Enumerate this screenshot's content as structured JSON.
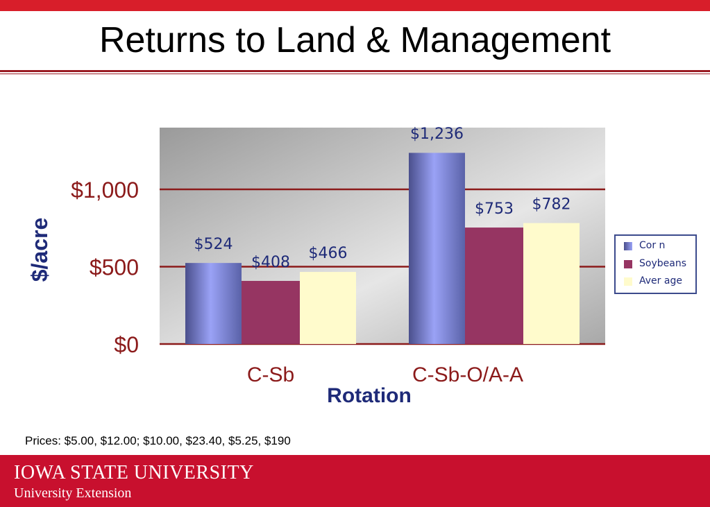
{
  "slide": {
    "title": "Returns to Land & Management",
    "footnote": "Prices: $5.00, $12.00; $10.00, $23.40, $5.25, $190",
    "footer": {
      "institution": "IOWA STATE UNIVERSITY",
      "unit": "University Extension"
    }
  },
  "colors": {
    "accent_red": "#d81e2a",
    "footer_red": "#c8102e",
    "corn": "#8f98ee",
    "soybeans": "#963562",
    "average": "#fffbcc",
    "axis_text": "#8b1a1a",
    "label_text": "#1e2a78"
  },
  "chart_data": {
    "type": "bar",
    "title": "",
    "xlabel": "Rotation",
    "ylabel": "$/acre",
    "categories": [
      "C-Sb",
      "C-Sb-O/A-A"
    ],
    "series": [
      {
        "name": "Corn",
        "legend_label": "Cor n",
        "values": [
          524,
          1236
        ],
        "labels": [
          "$524",
          "$1,236"
        ]
      },
      {
        "name": "Soybeans",
        "legend_label": "Soybeans",
        "values": [
          408,
          753
        ],
        "labels": [
          "$408",
          "$753"
        ]
      },
      {
        "name": "Average",
        "legend_label": "Aver age",
        "values": [
          466,
          782
        ],
        "labels": [
          "$466",
          "$782"
        ]
      }
    ],
    "yticks": [
      0,
      500,
      1000
    ],
    "ytick_labels": [
      "$0",
      "$500",
      "$1,000"
    ],
    "ylim": [
      0,
      1400
    ],
    "grid": true,
    "legend_position": "right"
  }
}
